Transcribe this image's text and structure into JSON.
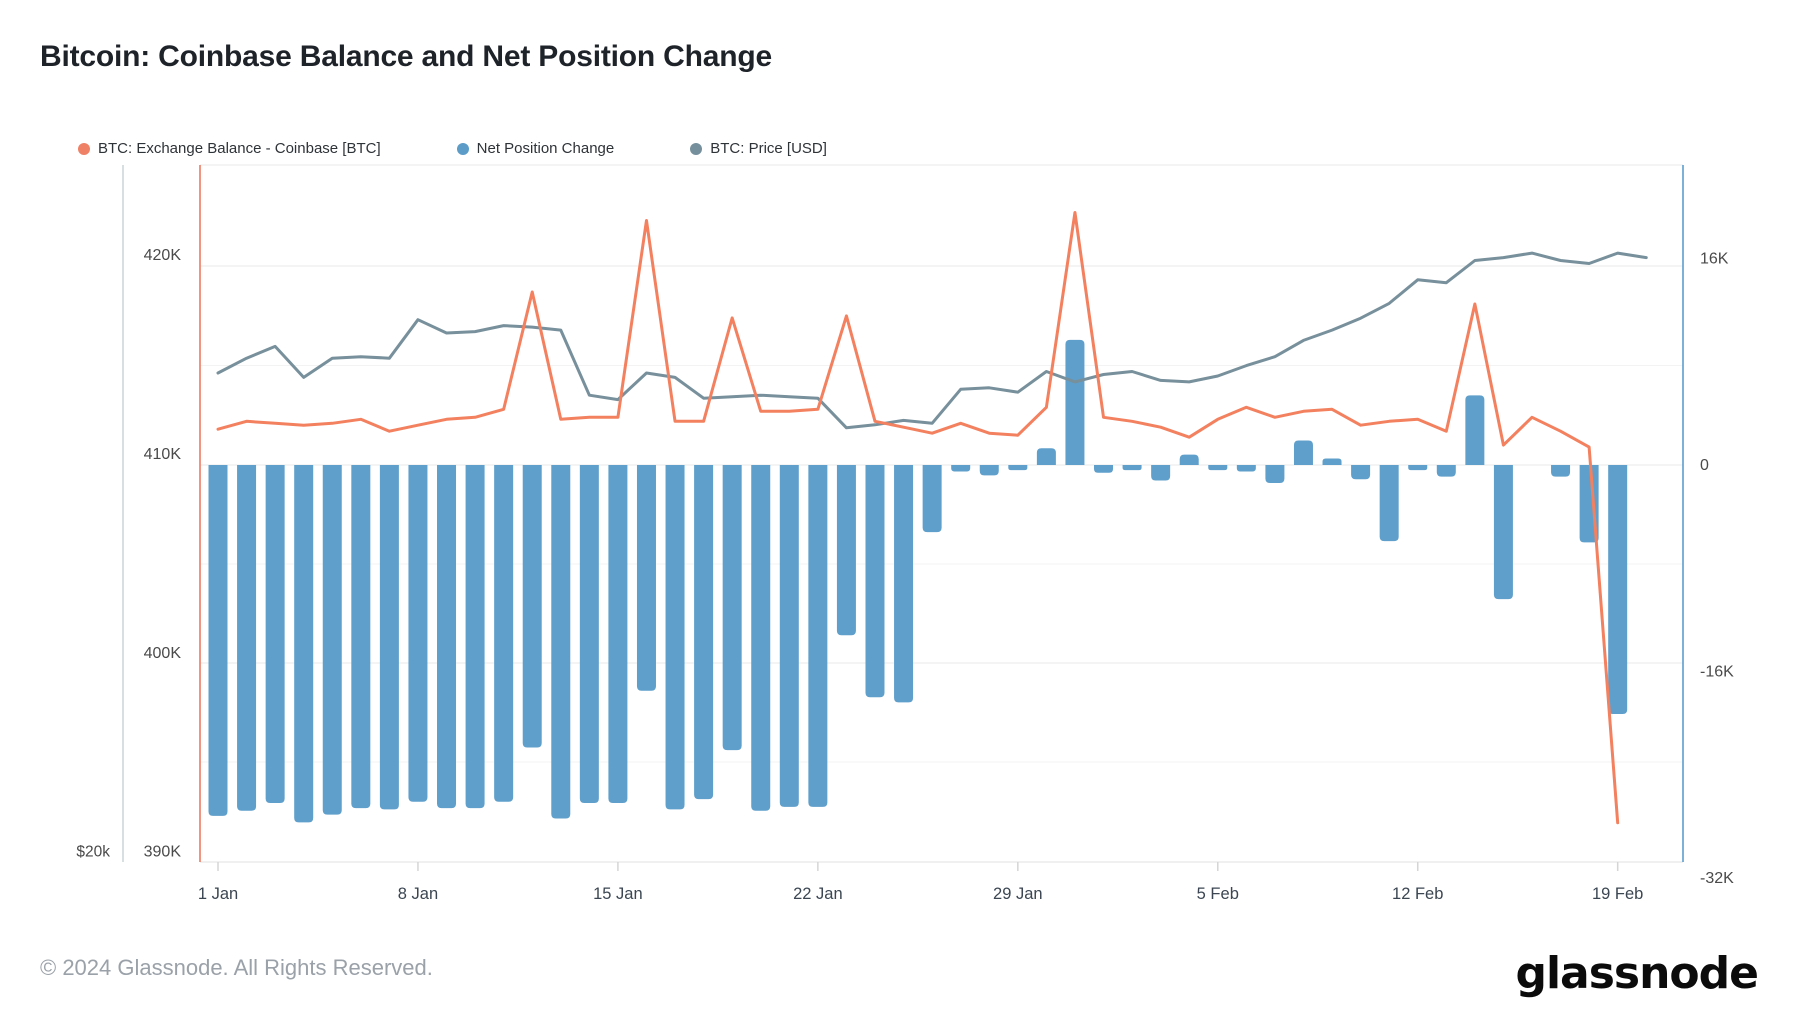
{
  "header": {
    "title": "Bitcoin: Coinbase Balance and Net Position Change"
  },
  "legend": [
    {
      "label": "BTC: Exchange Balance - Coinbase [BTC]",
      "color": "#ef8167"
    },
    {
      "label": "Net Position Change",
      "color": "#5b9cc9"
    },
    {
      "label": "BTC: Price [USD]",
      "color": "#75909c"
    }
  ],
  "colors": {
    "balance_line": "#f3805f",
    "npc_bar": "#5f9fcb",
    "price_line": "#77909b",
    "grid_major": "#e9e9e9",
    "grid_minor": "#f3f3f3",
    "axis_text": "#3c434c",
    "left_border": "#f0836a",
    "right_border": "#66a5d2",
    "price_axis_line": "#d8dfe1"
  },
  "axes": {
    "price_left": {
      "labels": [
        "$20k"
      ]
    },
    "balance_left": {
      "tick_labels": [
        "420K",
        "410K",
        "400K",
        "390K"
      ],
      "tick_values": [
        420,
        410,
        400,
        390
      ]
    },
    "npc_right": {
      "tick_labels": [
        "16K",
        "0",
        "-16K",
        "-32K"
      ],
      "tick_values": [
        16,
        0,
        -16,
        -32
      ]
    },
    "x": {
      "tick_labels": [
        "1 Jan",
        "8 Jan",
        "15 Jan",
        "22 Jan",
        "29 Jan",
        "5 Feb",
        "12 Feb",
        "19 Feb"
      ],
      "tick_days": [
        1,
        8,
        15,
        22,
        29,
        36,
        43,
        50
      ]
    }
  },
  "footer": {
    "copyright": "© 2024 Glassnode. All Rights Reserved.",
    "brand": "glassnode"
  },
  "chart_data": {
    "type": "mixed",
    "subtypes": {
      "net_position_change": "bar",
      "exchange_balance": "line",
      "price": "line"
    },
    "dates": [
      "1 Jan",
      "2 Jan",
      "3 Jan",
      "4 Jan",
      "5 Jan",
      "6 Jan",
      "7 Jan",
      "8 Jan",
      "9 Jan",
      "10 Jan",
      "11 Jan",
      "12 Jan",
      "13 Jan",
      "14 Jan",
      "15 Jan",
      "16 Jan",
      "17 Jan",
      "18 Jan",
      "19 Jan",
      "20 Jan",
      "21 Jan",
      "22 Jan",
      "23 Jan",
      "24 Jan",
      "25 Jan",
      "26 Jan",
      "27 Jan",
      "28 Jan",
      "29 Jan",
      "30 Jan",
      "31 Jan",
      "1 Feb",
      "2 Feb",
      "3 Feb",
      "4 Feb",
      "5 Feb",
      "6 Feb",
      "7 Feb",
      "8 Feb",
      "9 Feb",
      "10 Feb",
      "11 Feb",
      "12 Feb",
      "13 Feb",
      "14 Feb",
      "15 Feb",
      "16 Feb",
      "17 Feb",
      "18 Feb",
      "19 Feb",
      "20 Feb"
    ],
    "series": [
      {
        "name": "Net Position Change",
        "unit": "K BTC",
        "axis": "right",
        "values": [
          -27.2,
          -26.8,
          -26.2,
          -27.7,
          -27.1,
          -26.6,
          -26.7,
          -26.1,
          -26.6,
          -26.6,
          -26.1,
          -21.9,
          -27.4,
          -26.2,
          -26.2,
          -17.5,
          -26.7,
          -25.9,
          -22.1,
          -26.8,
          -26.5,
          -26.5,
          -13.2,
          -18.0,
          -18.4,
          -5.2,
          -0.5,
          -0.8,
          -0.4,
          1.3,
          9.7,
          -0.6,
          -0.4,
          -1.2,
          0.8,
          -0.4,
          -0.5,
          -1.4,
          1.9,
          0.5,
          -1.1,
          -5.9,
          -0.4,
          -0.9,
          5.4,
          -10.4,
          null,
          -0.9,
          -6.0,
          -19.3,
          null
        ]
      },
      {
        "name": "BTC: Exchange Balance - Coinbase [BTC]",
        "unit": "K BTC",
        "axis": "left_balance",
        "values": [
          411.8,
          412.2,
          412.1,
          412.0,
          412.1,
          412.3,
          411.7,
          412.0,
          412.3,
          412.4,
          412.8,
          418.7,
          412.3,
          412.4,
          412.4,
          422.3,
          412.2,
          412.2,
          417.4,
          412.7,
          412.7,
          412.8,
          417.5,
          412.2,
          411.9,
          411.6,
          412.1,
          411.6,
          411.5,
          412.9,
          422.7,
          412.4,
          412.2,
          411.9,
          411.4,
          412.3,
          412.9,
          412.4,
          412.7,
          412.8,
          412.0,
          412.2,
          412.3,
          411.7,
          418.1,
          411.0,
          412.4,
          411.7,
          410.9,
          392.0,
          null
        ]
      },
      {
        "name": "BTC: Price [USD]",
        "unit": "k USD",
        "axis": "price",
        "values": [
          44.2,
          45.2,
          46.0,
          43.9,
          45.2,
          45.3,
          45.2,
          47.8,
          46.9,
          47.0,
          47.4,
          47.3,
          47.1,
          42.7,
          42.4,
          44.2,
          43.9,
          42.5,
          42.6,
          42.7,
          42.6,
          42.5,
          40.5,
          40.7,
          41.0,
          40.8,
          43.1,
          43.2,
          42.9,
          44.3,
          43.6,
          44.1,
          44.3,
          43.7,
          43.6,
          44.0,
          44.7,
          45.3,
          46.4,
          47.1,
          47.9,
          48.9,
          50.5,
          50.3,
          51.8,
          52.0,
          52.3,
          51.8,
          51.6,
          52.3,
          52.0
        ]
      }
    ],
    "axis_ranges": {
      "balance_left_K": [
        390,
        425
      ],
      "npc_right_K": [
        -32,
        23
      ],
      "x_days": 51
    },
    "grid": true,
    "legend_position": "top-left"
  }
}
